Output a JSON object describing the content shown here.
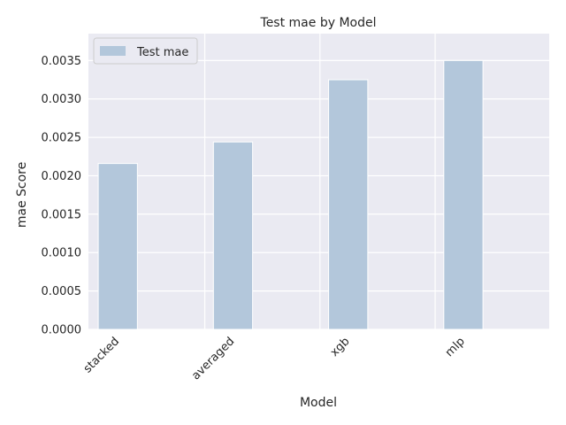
{
  "chart_data": {
    "type": "bar",
    "title": "Test mae by Model",
    "xlabel": "Model",
    "ylabel": "mae Score",
    "categories": [
      "stacked",
      "averaged",
      "xgb",
      "mlp"
    ],
    "series": [
      {
        "name": "Test mae",
        "values": [
          0.00216,
          0.00244,
          0.00325,
          0.0035
        ]
      }
    ],
    "ylim": [
      0,
      0.00385
    ],
    "yticks": [
      "0.0000",
      "0.0005",
      "0.0010",
      "0.0015",
      "0.0020",
      "0.0025",
      "0.0030",
      "0.0035"
    ],
    "ytick_values": [
      0,
      0.0005,
      0.001,
      0.0015,
      0.002,
      0.0025,
      0.003,
      0.0035
    ],
    "grid": true,
    "legend_position": "top-left",
    "colors": {
      "bar": "#b3c7db",
      "plot_background": "#eaeaf2",
      "grid": "#ffffff",
      "text": "#262626"
    }
  }
}
